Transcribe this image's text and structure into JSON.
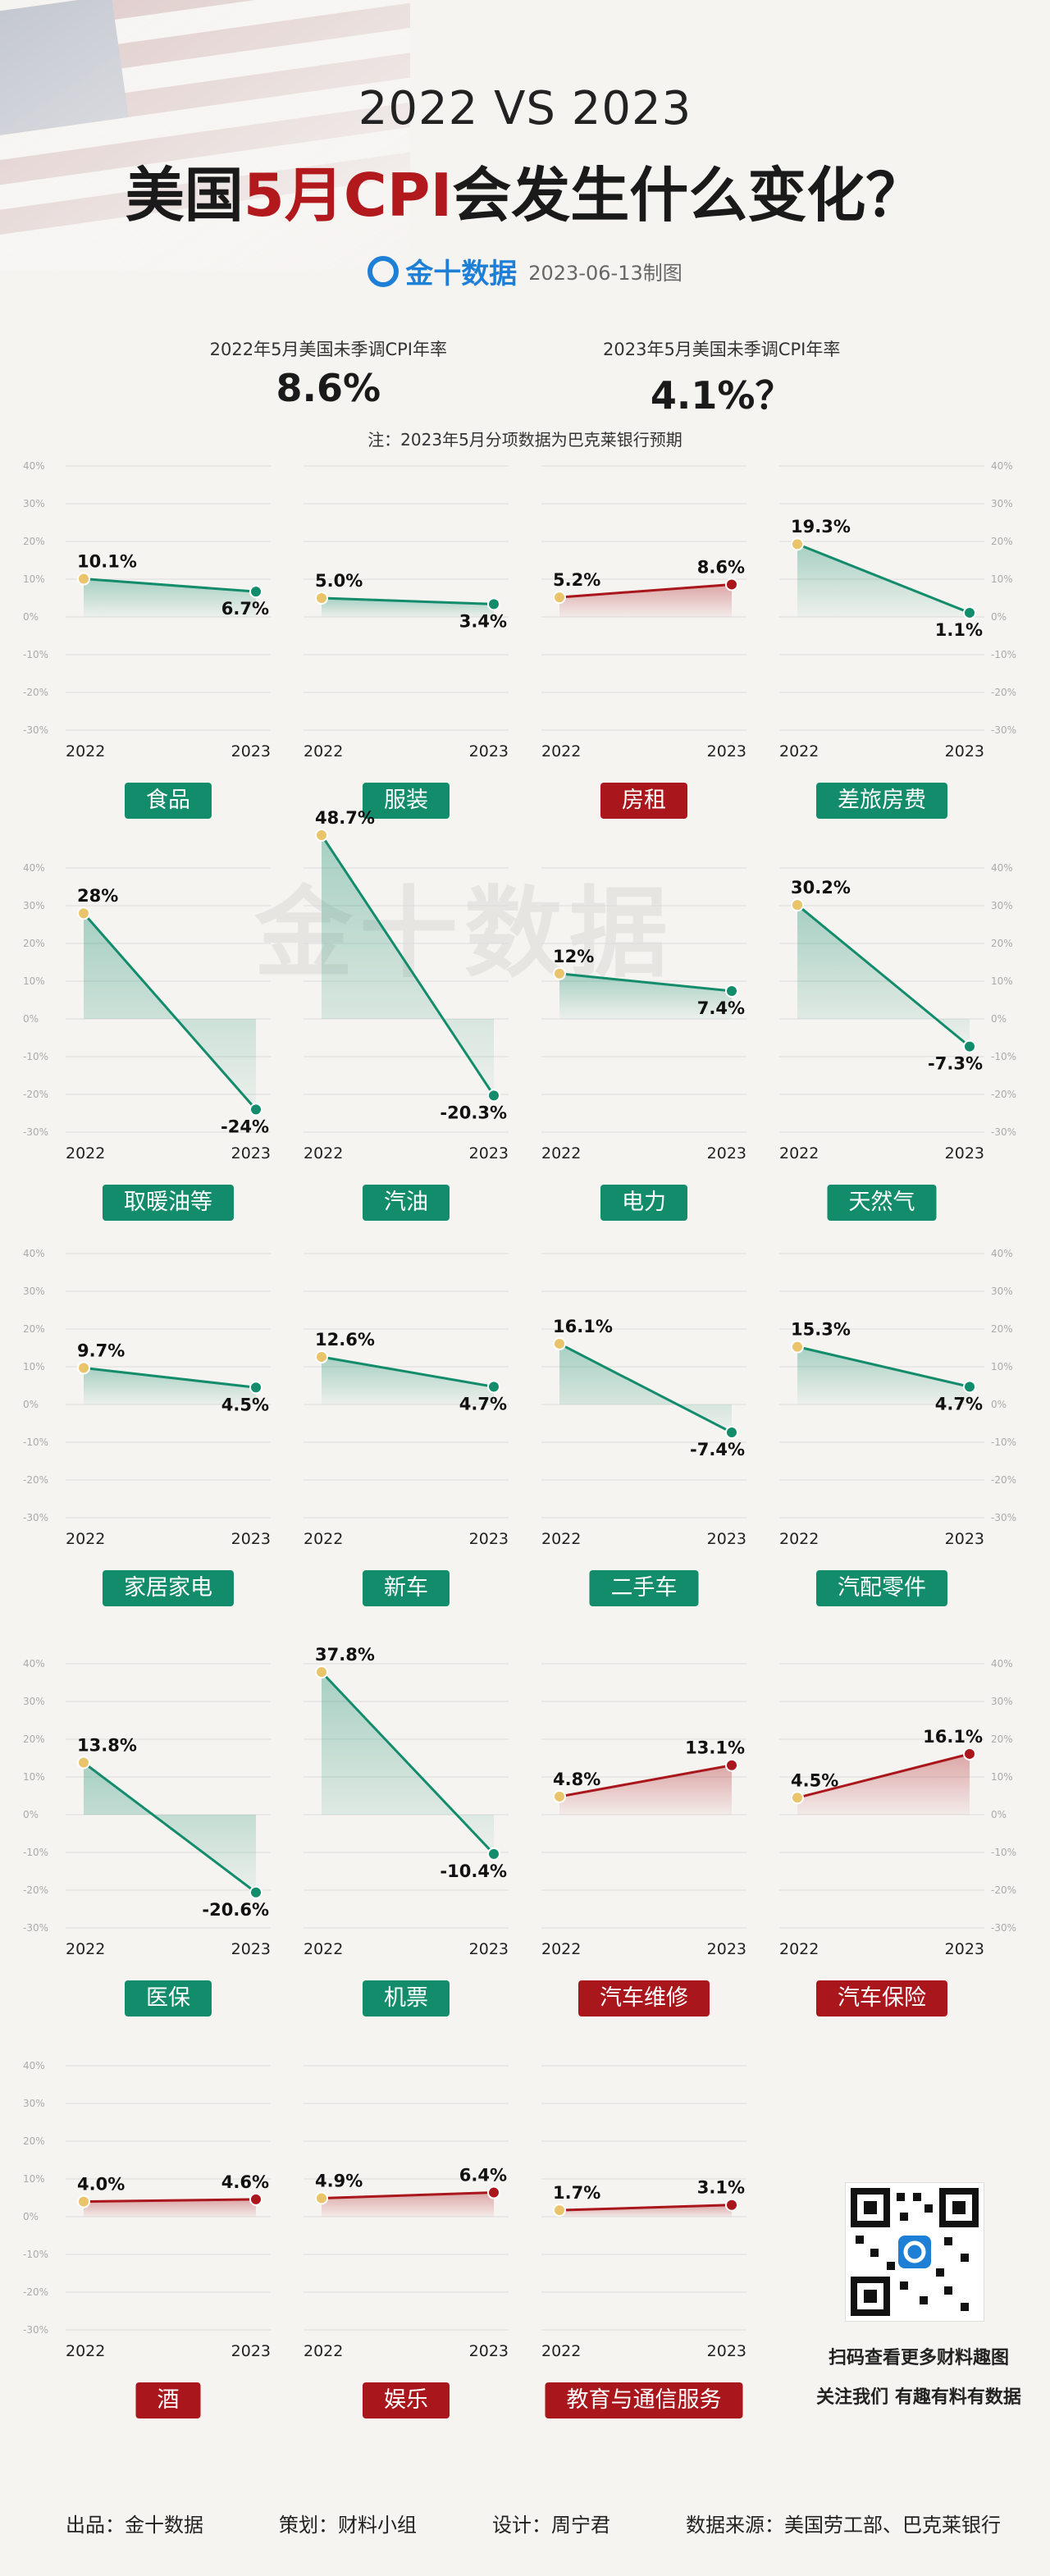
{
  "header": {
    "subtitle": "2022 VS 2023",
    "title_prefix": "美国",
    "title_highlight": "5月CPI",
    "title_suffix": "会发生什么变化？",
    "brand": "金十数据",
    "date": "2023-06-13制图"
  },
  "kpis": [
    {
      "label": "2022年5月美国未季调CPI年率",
      "value": "8.6%"
    },
    {
      "label": "2023年5月美国未季调CPI年率",
      "value": "4.1%？"
    }
  ],
  "note": "注：2023年5月分项数据为巴克莱银行预期",
  "watermark": "金十数据",
  "chart_data": {
    "type": "line",
    "x": [
      "2022",
      "2023"
    ],
    "ylim": [
      -30,
      40
    ],
    "yticks": [
      "40%",
      "30%",
      "20%",
      "10%",
      "0%",
      "-10%",
      "-20%",
      "-30%"
    ],
    "series": [
      {
        "name": "食品",
        "values": [
          10.1,
          6.7
        ],
        "labels": [
          "10.1%",
          "6.7%"
        ],
        "dir": "down"
      },
      {
        "name": "服装",
        "values": [
          5.0,
          3.4
        ],
        "labels": [
          "5.0%",
          "3.4%"
        ],
        "dir": "down"
      },
      {
        "name": "房租",
        "values": [
          5.2,
          8.6
        ],
        "labels": [
          "5.2%",
          "8.6%"
        ],
        "dir": "up"
      },
      {
        "name": "差旅房费",
        "values": [
          19.3,
          1.1
        ],
        "labels": [
          "19.3%",
          "1.1%"
        ],
        "dir": "down"
      },
      {
        "name": "取暖油等",
        "values": [
          28,
          -24
        ],
        "labels": [
          "28%",
          "-24%"
        ],
        "dir": "down"
      },
      {
        "name": "汽油",
        "values": [
          48.7,
          -20.3
        ],
        "labels": [
          "48.7%",
          "-20.3%"
        ],
        "dir": "down"
      },
      {
        "name": "电力",
        "values": [
          12,
          7.4
        ],
        "labels": [
          "12%",
          "7.4%"
        ],
        "dir": "down"
      },
      {
        "name": "天然气",
        "values": [
          30.2,
          -7.3
        ],
        "labels": [
          "30.2%",
          "-7.3%"
        ],
        "dir": "down"
      },
      {
        "name": "家居家电",
        "values": [
          9.7,
          4.5
        ],
        "labels": [
          "9.7%",
          "4.5%"
        ],
        "dir": "down"
      },
      {
        "name": "新车",
        "values": [
          12.6,
          4.7
        ],
        "labels": [
          "12.6%",
          "4.7%"
        ],
        "dir": "down"
      },
      {
        "name": "二手车",
        "values": [
          16.1,
          -7.4
        ],
        "labels": [
          "16.1%",
          "-7.4%"
        ],
        "dir": "down"
      },
      {
        "name": "汽配零件",
        "values": [
          15.3,
          4.7
        ],
        "labels": [
          "15.3%",
          "4.7%"
        ],
        "dir": "down"
      },
      {
        "name": "医保",
        "values": [
          13.8,
          -20.6
        ],
        "labels": [
          "13.8%",
          "-20.6%"
        ],
        "dir": "down"
      },
      {
        "name": "机票",
        "values": [
          37.8,
          -10.4
        ],
        "labels": [
          "37.8%",
          "-10.4%"
        ],
        "dir": "down"
      },
      {
        "name": "汽车维修",
        "values": [
          4.8,
          13.1
        ],
        "labels": [
          "4.8%",
          "13.1%"
        ],
        "dir": "up"
      },
      {
        "name": "汽车保险",
        "values": [
          4.5,
          16.1
        ],
        "labels": [
          "4.5%",
          "16.1%"
        ],
        "dir": "up"
      },
      {
        "name": "酒",
        "values": [
          4.0,
          4.6
        ],
        "labels": [
          "4.0%",
          "4.6%"
        ],
        "dir": "up"
      },
      {
        "name": "娱乐",
        "values": [
          4.9,
          6.4
        ],
        "labels": [
          "4.9%",
          "6.4%"
        ],
        "dir": "up"
      },
      {
        "name": "教育与通信服务",
        "values": [
          1.7,
          3.1
        ],
        "labels": [
          "1.7%",
          "3.1%"
        ],
        "dir": "up"
      }
    ]
  },
  "colors": {
    "down": "#138c6c",
    "up": "#a9161b",
    "start_dot": "#e9c46a"
  },
  "qr": {
    "line1": "扫码查看更多财料趣图",
    "line2": "关注我们 有趣有料有数据"
  },
  "footer": [
    "出品：金十数据",
    "策划：财料小组",
    "设计：周宁君",
    "数据来源：美国劳工部、巴克莱银行"
  ]
}
